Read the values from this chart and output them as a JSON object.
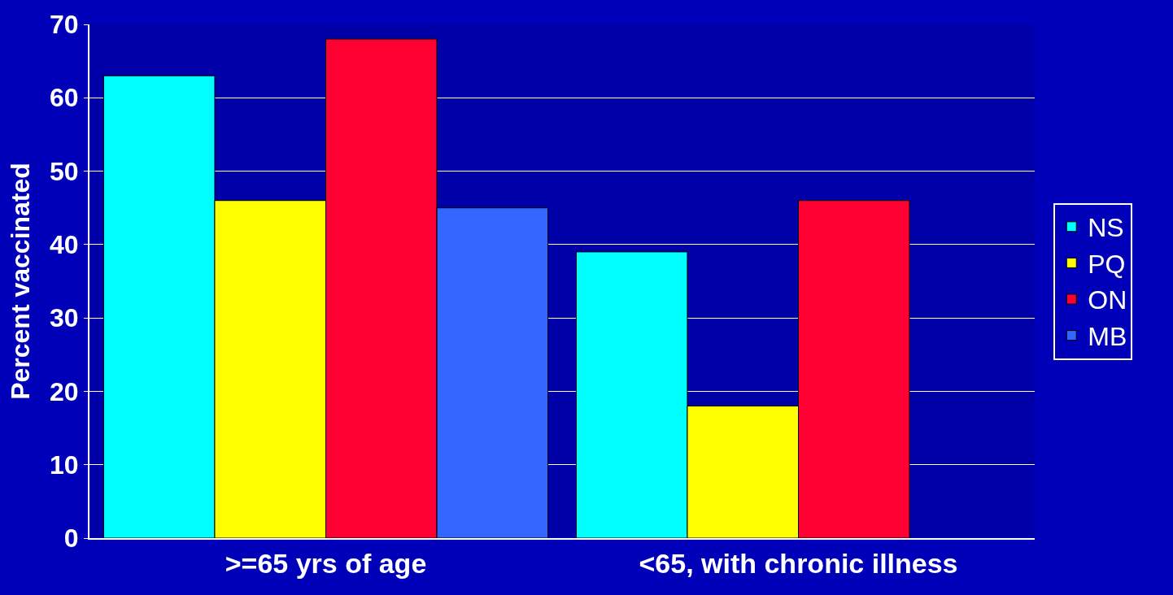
{
  "chart_data": {
    "type": "bar",
    "ylabel": "Percent vaccinated",
    "categories": [
      ">=65 yrs of age",
      "<65, with chronic illness"
    ],
    "series": [
      {
        "name": "NS",
        "color": "#00ffff",
        "values": [
          63,
          39
        ]
      },
      {
        "name": "PQ",
        "color": "#ffff00",
        "values": [
          46,
          18
        ]
      },
      {
        "name": "ON",
        "color": "#ff0033",
        "values": [
          68,
          46
        ]
      },
      {
        "name": "MB",
        "color": "#3366ff",
        "values": [
          45,
          null
        ]
      }
    ],
    "ylim": [
      0,
      70
    ],
    "yticks": [
      0,
      10,
      20,
      30,
      40,
      50,
      60,
      70
    ],
    "grid": "y",
    "legend": "right"
  }
}
